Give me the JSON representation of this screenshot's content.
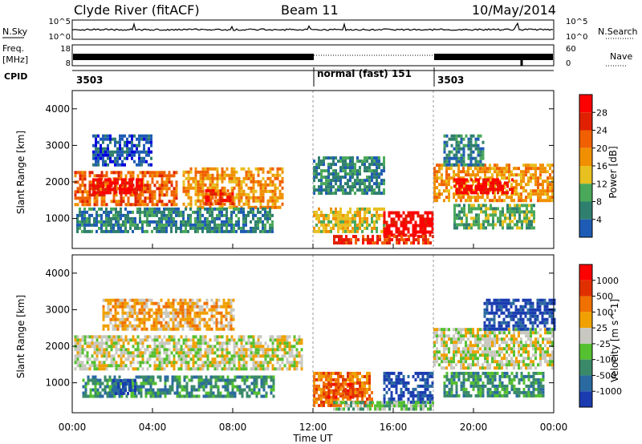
{
  "header": {
    "station": "Clyde River (fitACF)",
    "beam": "Beam 11",
    "date": "10/May/2014"
  },
  "noise_panel": {
    "left_label": "N.Sky",
    "right_label": "N.Search",
    "left_ticks": [
      "10^5",
      "10^0"
    ],
    "right_ticks": [
      "10^5",
      "10^0"
    ]
  },
  "freq_panel": {
    "left_label_line1": "Freq.",
    "left_label_line2": "[MHz]",
    "left_ticks": [
      "18",
      "8"
    ],
    "right_ticks": [
      "60",
      "0"
    ],
    "right_label": "Nave"
  },
  "cpid_panel": {
    "label": "CPID",
    "segments": [
      {
        "start_hour": 0,
        "end_hour": 12,
        "text": "3503"
      },
      {
        "start_hour": 12,
        "end_hour": 18,
        "text": "normal (fast) 151"
      },
      {
        "start_hour": 18,
        "end_hour": 24,
        "text": "3503"
      }
    ]
  },
  "time_axis": {
    "xlabel": "Time UT",
    "ticks": [
      "00:00",
      "04:00",
      "08:00",
      "12:00",
      "16:00",
      "20:00",
      "00:00"
    ]
  },
  "power_panel": {
    "ylabel": "Slant Range [km]",
    "yticks": [
      "1000",
      "2000",
      "3000",
      "4000"
    ],
    "colorbar_label": "Power [dB]",
    "colorbar_ticks": [
      "4",
      "8",
      "12",
      "16",
      "20",
      "24",
      "28"
    ],
    "colors": [
      "#0000dd",
      "#1e5bb4",
      "#2f7f6e",
      "#4aa85a",
      "#e8c020",
      "#f09000",
      "#f06000",
      "#e02000",
      "#ff0000"
    ]
  },
  "velocity_panel": {
    "ylabel": "Slant Range [km]",
    "yticks": [
      "1000",
      "2000",
      "3000",
      "4000"
    ],
    "colorbar_label": "Velocity [m s^-1]",
    "colorbar_ticks": [
      "1000",
      "500",
      "100",
      "25",
      "-25",
      "-100",
      "-500",
      "-1000"
    ],
    "colors": [
      "#1a3cb0",
      "#2a6aa0",
      "#3a8a6a",
      "#55c030",
      "#c8c8c0",
      "#f0a000",
      "#f07000",
      "#e03000",
      "#ff0000"
    ]
  },
  "chart_data": {
    "type": "heatmap",
    "x_range_hours": [
      0,
      24
    ],
    "y_range_km": [
      180,
      4500
    ],
    "mode_change_hours": [
      12,
      18
    ],
    "power_regions": [
      {
        "t0": 0.1,
        "t1": 5.2,
        "r0": 1400,
        "r1": 2300,
        "level": 6
      },
      {
        "t0": 1.0,
        "t1": 3.5,
        "r0": 1700,
        "r1": 2100,
        "level": 8
      },
      {
        "t0": 5.5,
        "t1": 10.5,
        "r0": 1300,
        "r1": 2400,
        "level": 5
      },
      {
        "t0": 6.5,
        "t1": 8.0,
        "r0": 1400,
        "r1": 1800,
        "level": 7
      },
      {
        "t0": 0.2,
        "t1": 10.0,
        "r0": 600,
        "r1": 1300,
        "level": 2
      },
      {
        "t0": 1.0,
        "t1": 4.0,
        "r0": 2500,
        "r1": 3300,
        "level": 1
      },
      {
        "t0": 12.0,
        "t1": 15.5,
        "r0": 1700,
        "r1": 2700,
        "level": 2
      },
      {
        "t0": 12.0,
        "t1": 15.5,
        "r0": 600,
        "r1": 1300,
        "level": 4
      },
      {
        "t0": 15.5,
        "t1": 18.0,
        "r0": 500,
        "r1": 1200,
        "level": 8
      },
      {
        "t0": 13.0,
        "t1": 18.0,
        "r0": 350,
        "r1": 550,
        "level": 7
      },
      {
        "t0": 18.0,
        "t1": 24.0,
        "r0": 1500,
        "r1": 2500,
        "level": 5
      },
      {
        "t0": 19.0,
        "t1": 22.0,
        "r0": 1700,
        "r1": 2100,
        "level": 8
      },
      {
        "t0": 19.0,
        "t1": 23.0,
        "r0": 700,
        "r1": 1400,
        "level": 3
      },
      {
        "t0": 18.5,
        "t1": 20.5,
        "r0": 2500,
        "r1": 3300,
        "level": 2
      }
    ],
    "velocity_regions": [
      {
        "t0": 0.1,
        "t1": 11.5,
        "r0": 1400,
        "r1": 2300,
        "class": 4
      },
      {
        "t0": 0.5,
        "t1": 10.0,
        "r0": 600,
        "r1": 1200,
        "class": 2
      },
      {
        "t0": 2.0,
        "t1": 3.2,
        "r0": 700,
        "r1": 1100,
        "class": 0
      },
      {
        "t0": 1.5,
        "t1": 8.0,
        "r0": 2500,
        "r1": 3300,
        "class": 5
      },
      {
        "t0": 12.0,
        "t1": 15.0,
        "r0": 350,
        "r1": 1300,
        "class": 6
      },
      {
        "t0": 12.5,
        "t1": 14.0,
        "r0": 600,
        "r1": 1000,
        "class": 7
      },
      {
        "t0": 15.5,
        "t1": 18.0,
        "r0": 500,
        "r1": 1300,
        "class": 0
      },
      {
        "t0": 13.0,
        "t1": 18.0,
        "r0": 250,
        "r1": 500,
        "class": 3
      },
      {
        "t0": 18.0,
        "t1": 24.0,
        "r0": 1400,
        "r1": 2500,
        "class": 4
      },
      {
        "t0": 18.5,
        "t1": 23.5,
        "r0": 600,
        "r1": 1300,
        "class": 2
      },
      {
        "t0": 20.5,
        "t1": 24.0,
        "r0": 2500,
        "r1": 3300,
        "class": 0
      }
    ]
  }
}
